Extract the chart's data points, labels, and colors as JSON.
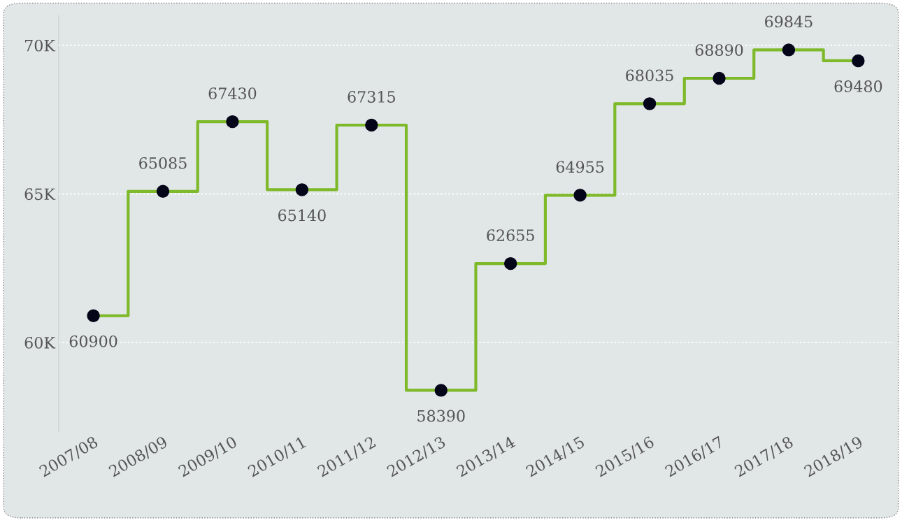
{
  "chart_data": {
    "type": "step",
    "categories": [
      "2007/08",
      "2008/09",
      "2009/10",
      "2010/11",
      "2011/12",
      "2012/13",
      "2013/14",
      "2014/15",
      "2015/16",
      "2016/17",
      "2017/18",
      "2018/19"
    ],
    "series": [
      {
        "color": "#7db928",
        "values": [
          60900,
          65085,
          67430,
          65140,
          67315,
          58390,
          62655,
          64955,
          68035,
          68890,
          69845,
          69480
        ]
      }
    ],
    "ylim": [
      57000,
      71000
    ],
    "yticks": [
      {
        "value": 60000,
        "label": "60K"
      },
      {
        "value": 65000,
        "label": "65K"
      },
      {
        "value": 70000,
        "label": "70K"
      }
    ],
    "grid": "y",
    "marker": "circle",
    "data_labels": true
  }
}
